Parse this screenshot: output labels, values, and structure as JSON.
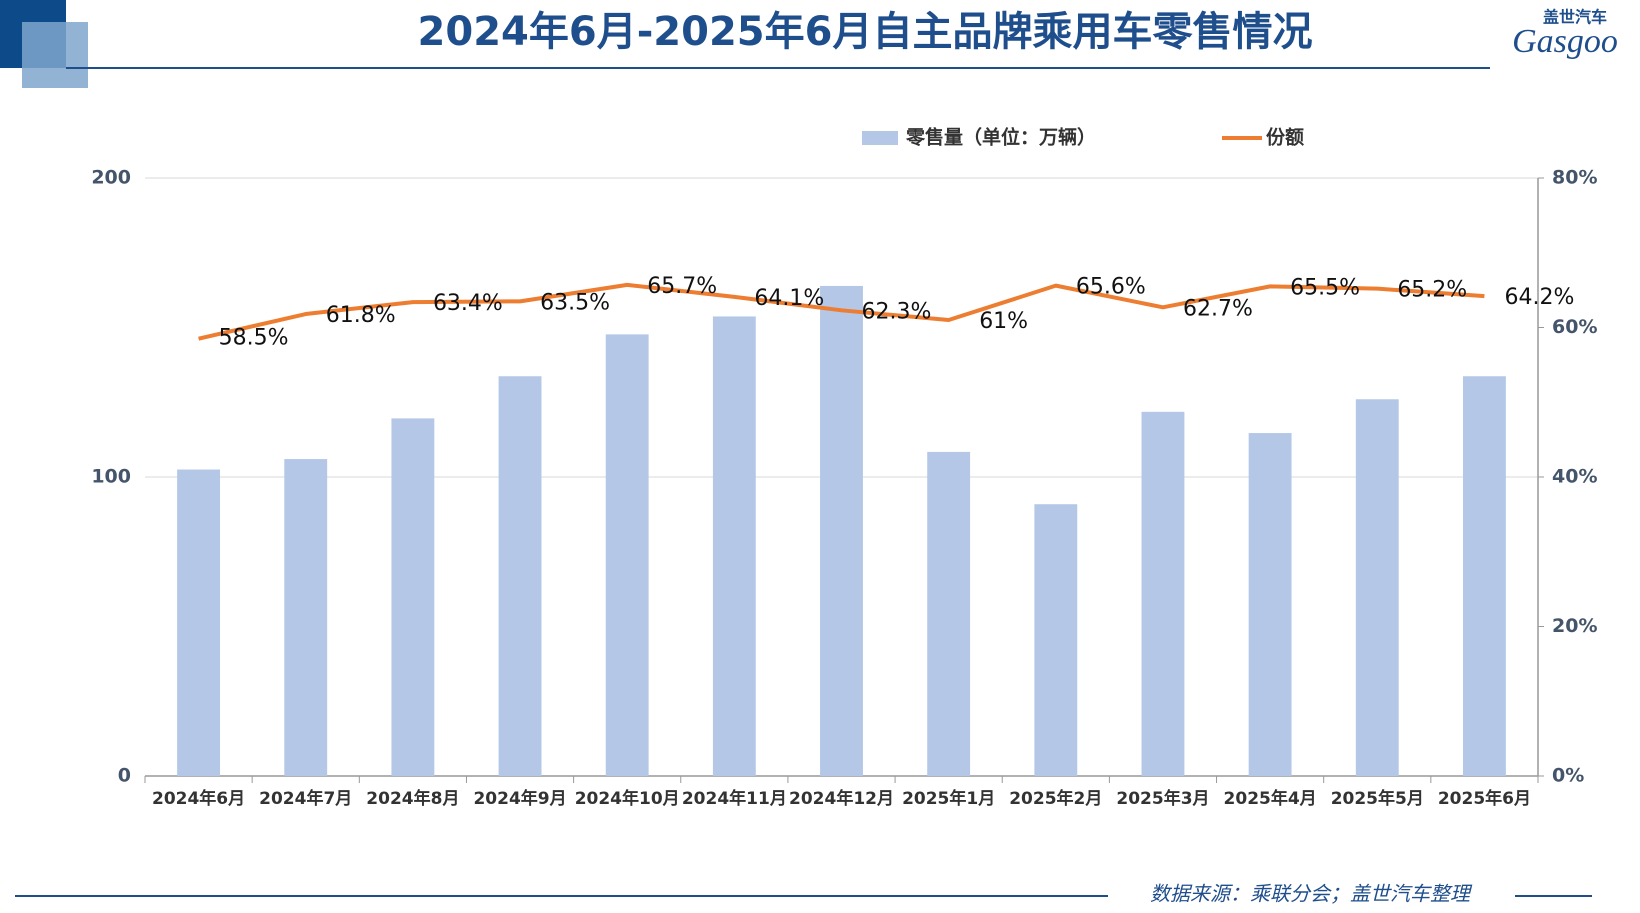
{
  "header": {
    "title": "2024年6月-2025年6月自主品牌乘用车零售情况",
    "logo_cn": "盖世汽车",
    "logo_en": "Gasgoo"
  },
  "chart_data": {
    "type": "bar",
    "categories": [
      "2024年6月",
      "2024年7月",
      "2024年8月",
      "2024年9月",
      "2024年10月",
      "2024年11月",
      "2024年12月",
      "2025年1月",
      "2025年2月",
      "2025年3月",
      "2025年4月",
      "2025年5月",
      "2025年6月"
    ],
    "series": [
      {
        "name": "零售量（单位：万辆）",
        "type": "bar",
        "color": "#b4c7e7",
        "values": [
          102.5,
          106,
          119.6,
          133.7,
          147.7,
          153.7,
          163.9,
          108.4,
          90.9,
          121.8,
          114.7,
          126,
          133.7
        ]
      },
      {
        "name": "份额",
        "type": "line",
        "axis": "y2",
        "color": "#ed7d31",
        "values": [
          58.5,
          61.8,
          63.4,
          63.5,
          65.7,
          64.1,
          62.3,
          61,
          65.6,
          62.7,
          65.5,
          65.2,
          64.2
        ],
        "value_labels": [
          "58.5%",
          "61.8%",
          "63.4%",
          "63.5%",
          "65.7%",
          "64.1%",
          "62.3%",
          "61%",
          "65.6%",
          "62.7%",
          "65.5%",
          "65.2%",
          "64.2%"
        ]
      }
    ],
    "ylim": [
      0,
      200
    ],
    "yticks": [
      0,
      100,
      200
    ],
    "y2lim": [
      0,
      80
    ],
    "y2ticks": [
      {
        "value": 0,
        "label": "0%"
      },
      {
        "value": 20,
        "label": "20%"
      },
      {
        "value": 40,
        "label": "40%"
      },
      {
        "value": 60,
        "label": "60%"
      },
      {
        "value": 80,
        "label": "80%"
      }
    ],
    "grid": true,
    "legend": "top"
  },
  "footer": {
    "source": "数据来源：乘联分会；盖世汽车整理"
  }
}
